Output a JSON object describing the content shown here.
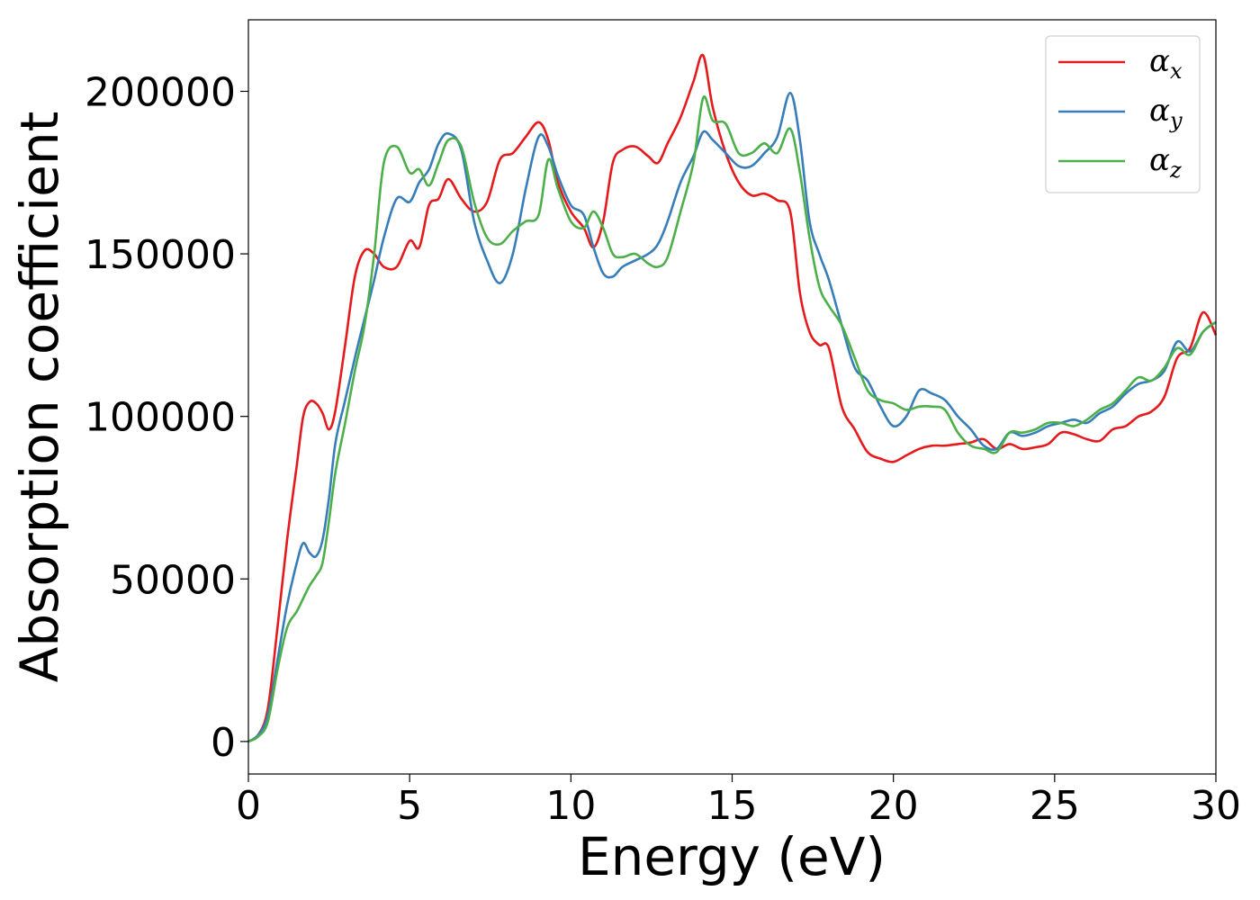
{
  "chart_data": {
    "type": "line",
    "xlabel": "Energy (eV)",
    "ylabel": "Absorption coefficient",
    "xlim": [
      0,
      30
    ],
    "ylim": [
      -10000,
      222000
    ],
    "xticks": [
      0,
      5,
      10,
      15,
      20,
      25,
      30
    ],
    "xtick_labels": [
      "0",
      "5",
      "10",
      "15",
      "20",
      "25",
      "30"
    ],
    "yticks": [
      0,
      50000,
      100000,
      150000,
      200000
    ],
    "ytick_labels": [
      "0",
      "50000",
      "100000",
      "150000",
      "200000"
    ],
    "grid": false,
    "legend_position": "top-right",
    "series": [
      {
        "name": "α",
        "subscript": "x",
        "color": "#e41a1c",
        "x": [
          0,
          0.3,
          0.6,
          0.9,
          1.2,
          1.5,
          1.7,
          1.9,
          2.1,
          2.3,
          2.5,
          2.7,
          3.0,
          3.3,
          3.6,
          3.9,
          4.2,
          4.6,
          5.0,
          5.3,
          5.6,
          5.9,
          6.2,
          6.6,
          7.0,
          7.4,
          7.8,
          8.2,
          8.6,
          9.0,
          9.3,
          9.6,
          10.0,
          10.4,
          10.7,
          11.0,
          11.3,
          11.6,
          12.0,
          12.4,
          12.7,
          13.0,
          13.4,
          13.8,
          14.1,
          14.4,
          14.8,
          15.2,
          15.6,
          16.0,
          16.4,
          16.8,
          17.1,
          17.4,
          17.7,
          18.0,
          18.4,
          18.8,
          19.2,
          19.6,
          20.0,
          20.4,
          20.8,
          21.2,
          21.6,
          22.0,
          22.4,
          22.8,
          23.2,
          23.6,
          24.0,
          24.4,
          24.8,
          25.2,
          25.6,
          26.0,
          26.4,
          26.8,
          27.2,
          27.6,
          28.0,
          28.4,
          28.8,
          29.2,
          29.6,
          30.0
        ],
        "y": [
          0,
          2000,
          10000,
          35000,
          62000,
          85000,
          100000,
          104500,
          104000,
          101000,
          96000,
          102000,
          122000,
          143000,
          151000,
          150000,
          146000,
          146000,
          154000,
          152000,
          165000,
          167000,
          173000,
          167000,
          163000,
          166000,
          179000,
          181000,
          186000,
          190500,
          185000,
          172000,
          163000,
          158000,
          152000,
          160000,
          178000,
          182000,
          183000,
          180000,
          178000,
          184000,
          192000,
          203000,
          211000,
          195000,
          181000,
          172000,
          168000,
          168500,
          166500,
          163000,
          138000,
          126000,
          122000,
          121000,
          103000,
          96000,
          89000,
          87000,
          86000,
          88000,
          90000,
          91000,
          91000,
          91500,
          92000,
          93000,
          90000,
          91500,
          90000,
          90500,
          91500,
          95000,
          94500,
          93000,
          92500,
          96000,
          97000,
          100000,
          101500,
          106000,
          118000,
          121000,
          132000,
          125000
        ]
      },
      {
        "name": "α",
        "subscript": "y",
        "color": "#377eb8",
        "x": [
          0,
          0.3,
          0.6,
          0.9,
          1.2,
          1.5,
          1.7,
          1.9,
          2.1,
          2.3,
          2.5,
          2.7,
          3.0,
          3.3,
          3.6,
          3.9,
          4.2,
          4.6,
          5.0,
          5.3,
          5.6,
          5.9,
          6.2,
          6.6,
          7.0,
          7.4,
          7.8,
          8.2,
          8.6,
          9.0,
          9.3,
          9.6,
          10.0,
          10.4,
          10.7,
          11.0,
          11.3,
          11.6,
          12.0,
          12.4,
          12.7,
          13.0,
          13.4,
          13.8,
          14.1,
          14.4,
          14.8,
          15.2,
          15.6,
          16.0,
          16.4,
          16.8,
          17.1,
          17.4,
          17.7,
          18.0,
          18.4,
          18.8,
          19.2,
          19.6,
          20.0,
          20.4,
          20.8,
          21.2,
          21.6,
          22.0,
          22.4,
          22.8,
          23.2,
          23.6,
          24.0,
          24.4,
          24.8,
          25.2,
          25.6,
          26.0,
          26.4,
          26.8,
          27.2,
          27.6,
          28.0,
          28.4,
          28.8,
          29.2,
          29.6,
          30.0
        ],
        "y": [
          0,
          2000,
          8000,
          25000,
          42000,
          55000,
          61000,
          58000,
          57000,
          62000,
          75000,
          92000,
          105000,
          118000,
          130000,
          142000,
          155000,
          167000,
          166000,
          172000,
          176000,
          184000,
          187000,
          182000,
          160000,
          148000,
          141000,
          150000,
          170000,
          186000,
          183000,
          174000,
          165000,
          162000,
          152000,
          144000,
          143000,
          146000,
          148000,
          150000,
          153000,
          160000,
          172000,
          180000,
          187500,
          185000,
          181000,
          177000,
          177000,
          181000,
          186000,
          199500,
          185000,
          160000,
          150000,
          142000,
          128000,
          115000,
          111000,
          103000,
          97000,
          100000,
          108000,
          107000,
          105000,
          100000,
          96000,
          91000,
          90000,
          95000,
          94000,
          95000,
          97000,
          98000,
          99000,
          98000,
          101000,
          103000,
          107000,
          110000,
          111000,
          114000,
          123000,
          120000,
          126000,
          129000
        ]
      },
      {
        "name": "α",
        "subscript": "z",
        "color": "#4daf4a",
        "x": [
          0,
          0.3,
          0.6,
          0.9,
          1.2,
          1.5,
          1.7,
          1.9,
          2.1,
          2.3,
          2.5,
          2.7,
          3.0,
          3.3,
          3.6,
          3.9,
          4.2,
          4.6,
          5.0,
          5.3,
          5.6,
          5.9,
          6.2,
          6.6,
          7.0,
          7.4,
          7.8,
          8.2,
          8.6,
          9.0,
          9.3,
          9.6,
          10.0,
          10.4,
          10.7,
          11.0,
          11.3,
          11.6,
          12.0,
          12.4,
          12.7,
          13.0,
          13.4,
          13.8,
          14.1,
          14.4,
          14.8,
          15.2,
          15.6,
          16.0,
          16.4,
          16.8,
          17.1,
          17.4,
          17.7,
          18.0,
          18.4,
          18.8,
          19.2,
          19.6,
          20.0,
          20.4,
          20.8,
          21.2,
          21.6,
          22.0,
          22.4,
          22.8,
          23.2,
          23.6,
          24.0,
          24.4,
          24.8,
          25.2,
          25.6,
          26.0,
          26.4,
          26.8,
          27.2,
          27.6,
          28.0,
          28.4,
          28.8,
          29.2,
          29.6,
          30.0
        ],
        "y": [
          0,
          1500,
          6000,
          22000,
          35000,
          40000,
          44000,
          48000,
          51000,
          55000,
          68000,
          83000,
          98000,
          114000,
          128000,
          150000,
          178000,
          183000,
          175000,
          176000,
          171000,
          178000,
          185000,
          183000,
          166000,
          155000,
          153000,
          157000,
          160000,
          162000,
          179000,
          170000,
          160000,
          158000,
          163000,
          158000,
          150000,
          149000,
          150000,
          147000,
          146000,
          149000,
          163000,
          178000,
          198000,
          191000,
          190000,
          181000,
          181000,
          184000,
          181000,
          188500,
          175000,
          155000,
          140000,
          134000,
          128000,
          118000,
          108000,
          105000,
          104000,
          102000,
          103000,
          103000,
          102000,
          95000,
          91000,
          90000,
          89000,
          95000,
          95000,
          96000,
          98000,
          98000,
          97000,
          99000,
          102000,
          104000,
          108000,
          112000,
          111000,
          115000,
          121000,
          119000,
          126000,
          129000
        ]
      }
    ]
  }
}
